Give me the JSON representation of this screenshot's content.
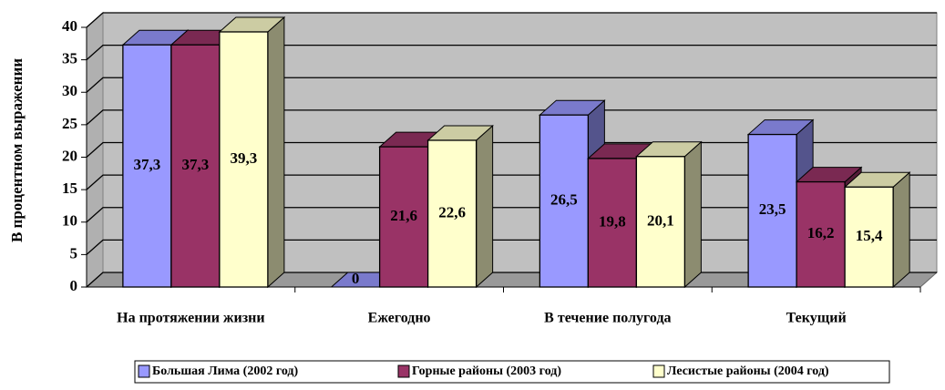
{
  "chart_data": {
    "type": "bar3d",
    "y_label": "В процентном выражении",
    "categories": [
      "На протяжении жизни",
      "Ежегодно",
      "В течение полугода",
      "Текущий"
    ],
    "series": [
      {
        "name": "Большая Лима (2002 год)",
        "color": "#9999ff",
        "values": [
          37.3,
          0,
          26.5,
          23.5
        ],
        "value_labels": [
          "37,3",
          "0",
          "26,5",
          "23,5"
        ]
      },
      {
        "name": "Горные районы (2003 год)",
        "color": "#993366",
        "values": [
          37.3,
          21.6,
          19.8,
          16.2
        ],
        "value_labels": [
          "37,3",
          "21,6",
          "19,8",
          "16,2"
        ]
      },
      {
        "name": "Лесистые районы (2004 год)",
        "color": "#ffffcc",
        "values": [
          39.3,
          22.6,
          20.1,
          15.4
        ],
        "value_labels": [
          "39,3",
          "22,6",
          "20,1",
          "15,4"
        ]
      }
    ],
    "ylim": [
      0,
      40
    ],
    "yticks": [
      0,
      5,
      10,
      15,
      20,
      25,
      30,
      35,
      40
    ],
    "grid": true,
    "legend": "bottom"
  }
}
